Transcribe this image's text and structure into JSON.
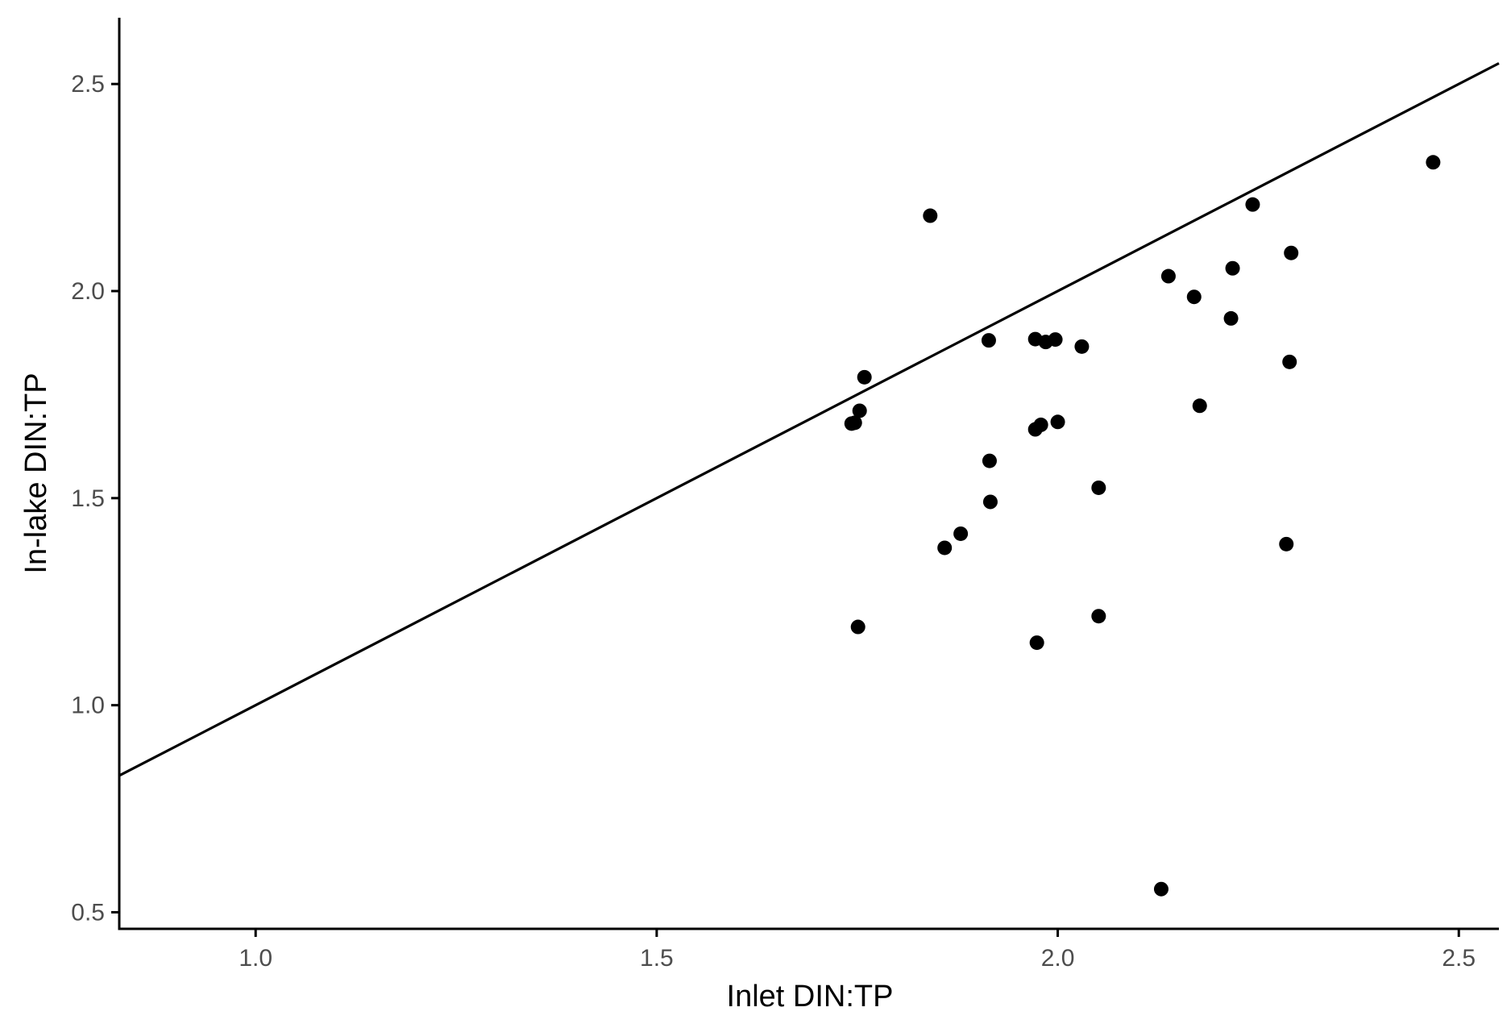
{
  "chart_data": {
    "type": "scatter",
    "title": "",
    "xlabel": "Inlet DIN:TP",
    "ylabel": "In-lake DIN:TP",
    "xlim": [
      0.83,
      2.55
    ],
    "ylim": [
      0.46,
      2.66
    ],
    "x_ticks": [
      1.0,
      1.5,
      2.0,
      2.5
    ],
    "y_ticks": [
      0.5,
      1.0,
      1.5,
      2.0,
      2.5
    ],
    "x_tick_labels": [
      "1.0",
      "1.5",
      "2.0",
      "2.5"
    ],
    "y_tick_labels": [
      "0.5",
      "1.0",
      "1.5",
      "2.0",
      "2.5"
    ],
    "grid": false,
    "reference_line": {
      "slope": 1,
      "intercept": 0
    },
    "points": [
      {
        "x": 1.743,
        "y": 1.68
      },
      {
        "x": 1.747,
        "y": 1.682
      },
      {
        "x": 1.751,
        "y": 1.189
      },
      {
        "x": 1.753,
        "y": 1.711
      },
      {
        "x": 1.759,
        "y": 1.792
      },
      {
        "x": 1.841,
        "y": 2.182
      },
      {
        "x": 1.859,
        "y": 1.38
      },
      {
        "x": 1.879,
        "y": 1.414
      },
      {
        "x": 1.914,
        "y": 1.881
      },
      {
        "x": 1.915,
        "y": 1.59
      },
      {
        "x": 1.916,
        "y": 1.491
      },
      {
        "x": 1.972,
        "y": 1.884
      },
      {
        "x": 1.972,
        "y": 1.666
      },
      {
        "x": 1.974,
        "y": 1.151
      },
      {
        "x": 1.979,
        "y": 1.677
      },
      {
        "x": 1.985,
        "y": 1.877
      },
      {
        "x": 1.997,
        "y": 1.883
      },
      {
        "x": 2.0,
        "y": 1.684
      },
      {
        "x": 2.03,
        "y": 1.866
      },
      {
        "x": 2.051,
        "y": 1.525
      },
      {
        "x": 2.051,
        "y": 1.215
      },
      {
        "x": 2.129,
        "y": 0.556
      },
      {
        "x": 2.138,
        "y": 2.036
      },
      {
        "x": 2.17,
        "y": 1.986
      },
      {
        "x": 2.177,
        "y": 1.723
      },
      {
        "x": 2.216,
        "y": 1.934
      },
      {
        "x": 2.218,
        "y": 2.055
      },
      {
        "x": 2.243,
        "y": 2.209
      },
      {
        "x": 2.285,
        "y": 1.389
      },
      {
        "x": 2.289,
        "y": 1.829
      },
      {
        "x": 2.291,
        "y": 2.092
      },
      {
        "x": 2.468,
        "y": 2.311
      }
    ]
  }
}
